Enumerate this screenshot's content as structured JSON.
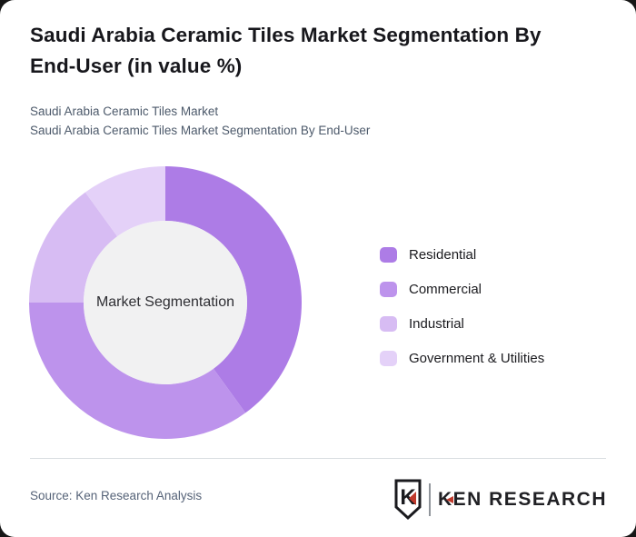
{
  "page": {
    "title": "Saudi Arabia Ceramic Tiles Market Segmentation By\nEnd-User (in value %)",
    "subtitle_line1": "Saudi Arabia Ceramic Tiles Market",
    "subtitle_line2": "Saudi Arabia Ceramic Tiles Market Segmentation By End-User",
    "source": "Source: Ken Research Analysis",
    "outside_color": "#161616",
    "card_color": "#ffffff"
  },
  "chart_data": {
    "type": "pie",
    "variant": "donut",
    "title": "Saudi Arabia Ceramic Tiles Market Segmentation By End-User (in value %)",
    "center_label": "Market Segmentation",
    "categories": [
      "Residential",
      "Commercial",
      "Industrial",
      "Government & Utilities"
    ],
    "values": [
      40,
      35,
      15,
      10
    ],
    "unit": "percent_of_value",
    "colors": [
      "#ad7ce6",
      "#bd93ec",
      "#d7bcf3",
      "#e4d1f8"
    ],
    "start_angle_deg": 0,
    "direction": "clockwise",
    "inner_hole_color": "#f1f1f2",
    "legend_position": "right",
    "grid": false
  },
  "logo": {
    "emblem_letter": "K",
    "text": "KEN RESEARCH",
    "accent_color": "#c0392b",
    "ink_color": "#1a1a1e"
  }
}
